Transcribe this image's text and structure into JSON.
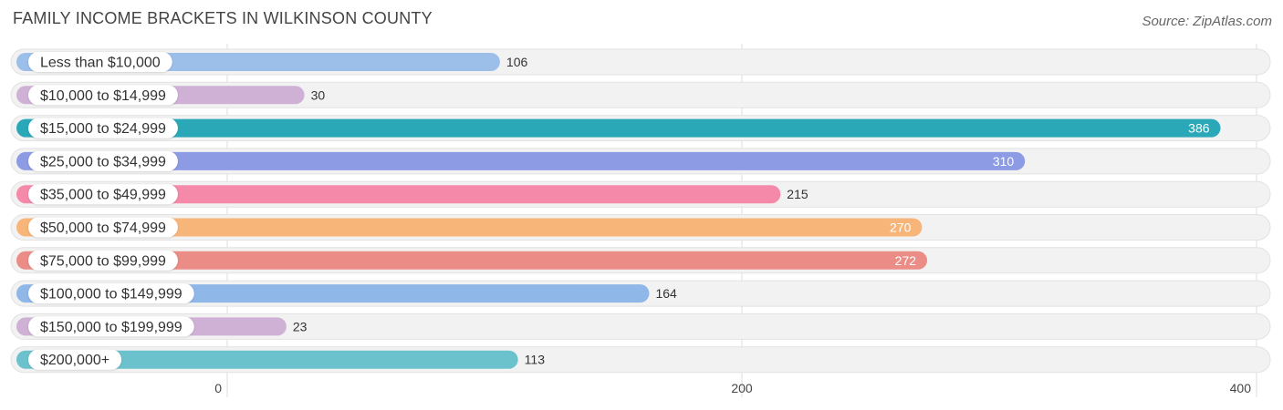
{
  "header": {
    "title": "FAMILY INCOME BRACKETS IN WILKINSON COUNTY",
    "source": "Source: ZipAtlas.com"
  },
  "chart_data": {
    "type": "bar",
    "orientation": "horizontal",
    "title": "FAMILY INCOME BRACKETS IN WILKINSON COUNTY",
    "categories": [
      "Less than $10,000",
      "$10,000 to $14,999",
      "$15,000 to $24,999",
      "$25,000 to $34,999",
      "$35,000 to $49,999",
      "$50,000 to $74,999",
      "$75,000 to $99,999",
      "$100,000 to $149,999",
      "$150,000 to $199,999",
      "$200,000+"
    ],
    "values": [
      106,
      30,
      386,
      310,
      215,
      270,
      272,
      164,
      23,
      113
    ],
    "colors": [
      "#9bbfe9",
      "#cfb1d6",
      "#2aa8b8",
      "#8c9be3",
      "#f589aa",
      "#f8b57a",
      "#eb8c86",
      "#8fb7e8",
      "#cfb1d6",
      "#6cc2cc"
    ],
    "xlim": [
      0,
      400
    ],
    "xticks": [
      0,
      200,
      400
    ],
    "xtick_labels": [
      "0",
      "200",
      "400"
    ],
    "grid": true,
    "xlabel": "",
    "ylabel": ""
  }
}
